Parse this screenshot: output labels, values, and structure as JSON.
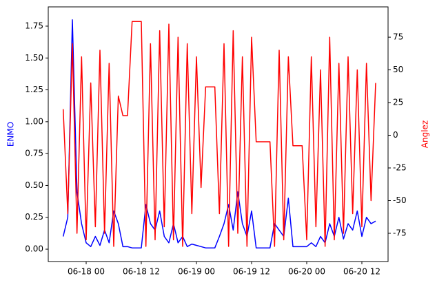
{
  "chart_data": {
    "type": "line",
    "x": [
      "06-17 19:00",
      "06-17 20:00",
      "06-17 21:00",
      "06-17 22:00",
      "06-17 23:00",
      "06-18 00:00",
      "06-18 01:00",
      "06-18 02:00",
      "06-18 03:00",
      "06-18 04:00",
      "06-18 05:00",
      "06-18 06:00",
      "06-18 07:00",
      "06-18 08:00",
      "06-18 09:00",
      "06-18 10:00",
      "06-18 11:00",
      "06-18 12:00",
      "06-18 13:00",
      "06-18 14:00",
      "06-18 15:00",
      "06-18 16:00",
      "06-18 17:00",
      "06-18 18:00",
      "06-18 19:00",
      "06-18 20:00",
      "06-18 21:00",
      "06-18 22:00",
      "06-18 23:00",
      "06-19 00:00",
      "06-19 01:00",
      "06-19 02:00",
      "06-19 03:00",
      "06-19 04:00",
      "06-19 05:00",
      "06-19 06:00",
      "06-19 07:00",
      "06-19 08:00",
      "06-19 09:00",
      "06-19 10:00",
      "06-19 11:00",
      "06-19 12:00",
      "06-19 13:00",
      "06-19 14:00",
      "06-19 15:00",
      "06-19 16:00",
      "06-19 17:00",
      "06-19 18:00",
      "06-19 19:00",
      "06-19 20:00",
      "06-19 21:00",
      "06-19 22:00",
      "06-19 23:00",
      "06-20 00:00",
      "06-20 01:00",
      "06-20 02:00",
      "06-20 03:00",
      "06-20 04:00",
      "06-20 05:00",
      "06-20 06:00",
      "06-20 07:00",
      "06-20 08:00",
      "06-20 09:00",
      "06-20 10:00",
      "06-20 11:00",
      "06-20 12:00",
      "06-20 13:00",
      "06-20 14:00",
      "06-20 15:00"
    ],
    "series": [
      {
        "name": "ENMO",
        "color": "#0000ff",
        "values": [
          0.1,
          0.25,
          1.8,
          0.45,
          0.2,
          0.05,
          0.02,
          0.1,
          0.03,
          0.15,
          0.05,
          0.3,
          0.2,
          0.02,
          0.02,
          0.01,
          0.01,
          0.01,
          0.35,
          0.2,
          0.15,
          0.3,
          0.1,
          0.05,
          0.2,
          0.05,
          0.1,
          0.02,
          0.04,
          0.03,
          0.02,
          0.01,
          0.01,
          0.01,
          0.1,
          0.2,
          0.35,
          0.15,
          0.45,
          0.2,
          0.1,
          0.3,
          0.01,
          0.01,
          0.01,
          0.01,
          0.2,
          0.15,
          0.1,
          0.4,
          0.02,
          0.02,
          0.02,
          0.02,
          0.05,
          0.02,
          0.1,
          0.05,
          0.2,
          0.1,
          0.25,
          0.08,
          0.2,
          0.15,
          0.3,
          0.1,
          0.25,
          0.2,
          0.22
        ]
      },
      {
        "name": "Anglez",
        "color": "#ff0000",
        "axis": "y2",
        "values": [
          20,
          -60,
          70,
          -75,
          60,
          -80,
          40,
          -70,
          65,
          -75,
          55,
          -85,
          30,
          15,
          15,
          87,
          87,
          87,
          -85,
          70,
          -80,
          80,
          -70,
          85,
          -80,
          75,
          -85,
          70,
          -60,
          60,
          -40,
          37,
          37,
          37,
          -60,
          70,
          -85,
          80,
          -75,
          60,
          -85,
          75,
          -5,
          -5,
          -5,
          -5,
          -85,
          65,
          -80,
          60,
          -8,
          -8,
          -8,
          -80,
          60,
          -70,
          50,
          -85,
          75,
          -80,
          55,
          -75,
          60,
          -60,
          50,
          -70,
          55,
          -50,
          40
        ]
      }
    ],
    "ylabel": "ENMO",
    "y2label": "Anglez",
    "xlim": [
      "06-17 15:45",
      "06-20 17:42"
    ],
    "xticks": [
      {
        "value": "06-18 00:00",
        "label": "06-18 00"
      },
      {
        "value": "06-18 12:00",
        "label": "06-18 12"
      },
      {
        "value": "06-19 00:00",
        "label": "06-19 00"
      },
      {
        "value": "06-19 12:00",
        "label": "06-19 12"
      },
      {
        "value": "06-20 00:00",
        "label": "06-20 00"
      },
      {
        "value": "06-20 12:00",
        "label": "06-20 12"
      }
    ],
    "ylim": [
      -0.097,
      1.901
    ],
    "yticks": [
      {
        "value": 0,
        "label": "0.00"
      },
      {
        "value": 0.25,
        "label": "0.25"
      },
      {
        "value": 0.5,
        "label": "0.50"
      },
      {
        "value": 0.75,
        "label": "0.75"
      },
      {
        "value": 1,
        "label": "1.00"
      },
      {
        "value": 1.25,
        "label": "1.25"
      },
      {
        "value": 1.5,
        "label": "1.50"
      },
      {
        "value": 1.75,
        "label": "1.75"
      }
    ],
    "y2lim": [
      -96.6,
      98.2
    ],
    "y2ticks": [
      -75,
      -50,
      -25,
      0,
      25,
      50,
      75
    ]
  }
}
